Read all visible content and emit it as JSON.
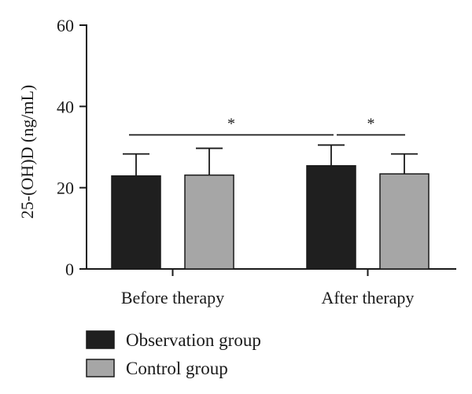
{
  "chart_data": {
    "type": "bar",
    "categories": [
      "Before therapy",
      "After therapy"
    ],
    "series": [
      {
        "name": "Observation group",
        "color": "#1f1f1f",
        "values": [
          22.9,
          25.4
        ],
        "error": [
          5.4,
          5.1
        ]
      },
      {
        "name": "Control group",
        "color": "#a6a6a6",
        "values": [
          23.1,
          23.4
        ],
        "error": [
          6.6,
          4.9
        ]
      }
    ],
    "ylabel": "25-(OH)D (ng/mL)",
    "xlabel": "",
    "ylim": [
      0,
      60
    ],
    "yticks": [
      0,
      20,
      40,
      60
    ],
    "grid": false,
    "legend_position": "bottom-left",
    "significance": [
      {
        "label": "*",
        "from": {
          "category": 0,
          "series": 0
        },
        "to": {
          "category": 1,
          "series": 0
        }
      },
      {
        "label": "*",
        "from": {
          "category": 1,
          "series": 0
        },
        "to": {
          "category": 1,
          "series": 1
        }
      }
    ]
  }
}
